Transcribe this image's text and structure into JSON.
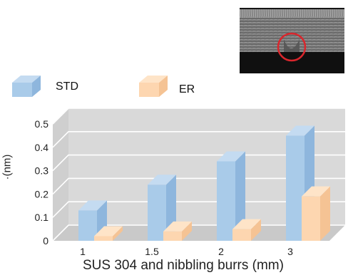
{
  "legend": {
    "items": [
      {
        "name": "STD"
      },
      {
        "name": "ER"
      }
    ]
  },
  "colors": {
    "std_front": "#a9cbe9",
    "std_side": "#8eb6dd",
    "std_top": "#c4dbf1",
    "er_front": "#fdd6b0",
    "er_side": "#f5c394",
    "er_top": "#fee4c8",
    "wall": "#d9d9d9",
    "floor": "#c9c9c9",
    "grid": "#ffffff",
    "annotation": "#d9262c"
  },
  "inset_photo": {
    "annotation": "red-circle"
  },
  "chart_data": {
    "type": "bar",
    "style": "3d-grouped",
    "categories": [
      "1",
      "1.5",
      "2",
      "3"
    ],
    "series": [
      {
        "name": "STD",
        "values": [
          0.13,
          0.24,
          0.34,
          0.45
        ]
      },
      {
        "name": "ER",
        "values": [
          0.02,
          0.04,
          0.05,
          0.19
        ]
      }
    ],
    "title": "",
    "xlabel": "SUS 304 and nibbling burrs (mm)",
    "ylabel": "·(nm)",
    "ylim": [
      0,
      0.5
    ],
    "yticks": [
      "0",
      "0.1",
      "0.2",
      "0.3",
      "0.4",
      "0.5"
    ],
    "grid": true,
    "legend_position": "top-left"
  }
}
